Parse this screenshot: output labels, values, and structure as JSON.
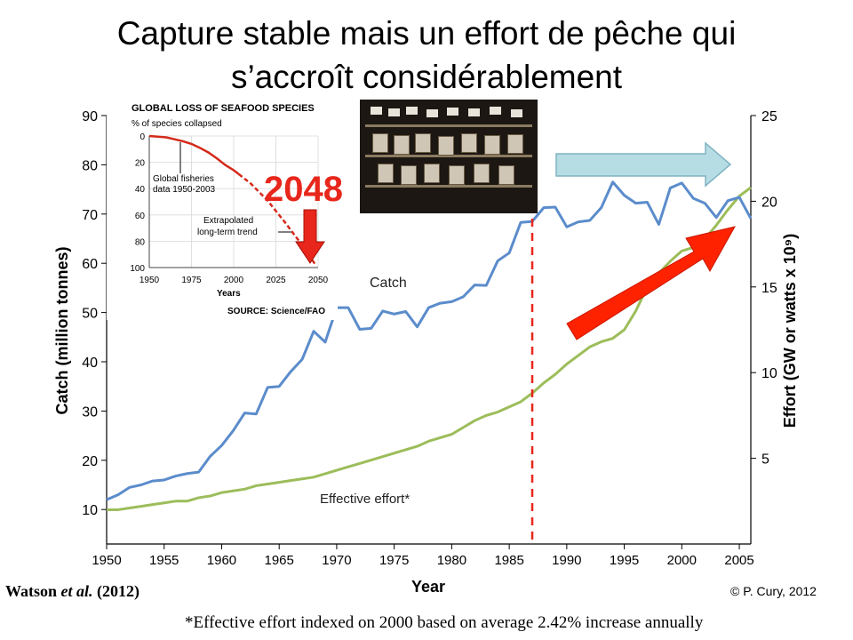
{
  "slide": {
    "title_line1": "Capture stable mais un effort de pêche qui",
    "title_line2": "s’accroît considérablement",
    "source_left_author": "Watson",
    "source_left_etal": "et al.",
    "source_left_year": "(2012)",
    "credit": "© P. Cury, 2012",
    "footnote": "*Effective effort indexed on 2000 based on average 2.42% increase annually",
    "photo_desc": "market-stall-photo"
  },
  "chart_data": [
    {
      "type": "line",
      "xlabel": "Year",
      "ylabel": "Catch (million tonnes)",
      "y2label": "Effort (GW or watts x 10⁹)",
      "xlim": [
        1950,
        2006
      ],
      "ylim": [
        3,
        90
      ],
      "y2lim": [
        0,
        25
      ],
      "x_ticks": [
        1950,
        1955,
        1960,
        1965,
        1970,
        1975,
        1980,
        1985,
        1990,
        1995,
        2000,
        2005
      ],
      "y_ticks": [
        10,
        20,
        30,
        40,
        50,
        60,
        70,
        80,
        90
      ],
      "y2_ticks": [
        5,
        10,
        15,
        20,
        25
      ],
      "grid": false,
      "colors": {
        "catch": "#5b8ccb",
        "effort": "#9cbd5a",
        "marker": "#e8261b",
        "blue_arrow": "#b7dde4",
        "red_arrow": "#ff2200"
      },
      "marker_line_x": 1987,
      "series": [
        {
          "name": "Catch",
          "axis": "left",
          "x": [
            1950,
            1951,
            1952,
            1953,
            1954,
            1955,
            1956,
            1957,
            1958,
            1959,
            1960,
            1961,
            1962,
            1963,
            1964,
            1965,
            1966,
            1967,
            1968,
            1969,
            1970,
            1971,
            1972,
            1973,
            1974,
            1975,
            1976,
            1977,
            1978,
            1979,
            1980,
            1981,
            1982,
            1983,
            1984,
            1985,
            1986,
            1987,
            1988,
            1989,
            1990,
            1991,
            1992,
            1993,
            1994,
            1995,
            1996,
            1997,
            1998,
            1999,
            2000,
            2001,
            2002,
            2003,
            2004,
            2005,
            2006
          ],
          "values": [
            12,
            13,
            14.5,
            15,
            15.8,
            16,
            16.8,
            17.3,
            17.6,
            20.8,
            23,
            26,
            29.6,
            29.4,
            34.8,
            35,
            38,
            40.5,
            46.2,
            44,
            51,
            51,
            46.6,
            46.8,
            50.3,
            49.7,
            50.2,
            47.1,
            51,
            51.9,
            52.2,
            53.2,
            55.6,
            55.5,
            60.5,
            62.1,
            68.3,
            68.5,
            71.3,
            71.4,
            67.4,
            68.4,
            68.7,
            71.3,
            76.5,
            73.8,
            72.2,
            72.4,
            67.9,
            75.3,
            76.3,
            73.2,
            72.2,
            69.3,
            72.7,
            73.4,
            69.1
          ]
        },
        {
          "name": "Effective effort*",
          "axis": "right",
          "x": [
            1950,
            1951,
            1952,
            1953,
            1954,
            1955,
            1956,
            1957,
            1958,
            1959,
            1960,
            1961,
            1962,
            1963,
            1964,
            1965,
            1966,
            1967,
            1968,
            1969,
            1970,
            1971,
            1972,
            1973,
            1974,
            1975,
            1976,
            1977,
            1978,
            1979,
            1980,
            1981,
            1982,
            1983,
            1984,
            1985,
            1986,
            1987,
            1988,
            1989,
            1990,
            1991,
            1992,
            1993,
            1994,
            1995,
            1996,
            1997,
            1998,
            1999,
            2000,
            2001,
            2002,
            2003,
            2004,
            2005,
            2006
          ],
          "values": [
            2,
            2,
            2.1,
            2.2,
            2.3,
            2.4,
            2.5,
            2.5,
            2.7,
            2.8,
            3,
            3.1,
            3.2,
            3.4,
            3.5,
            3.6,
            3.7,
            3.8,
            3.9,
            4.1,
            4.3,
            4.5,
            4.7,
            4.9,
            5.1,
            5.3,
            5.5,
            5.7,
            6,
            6.2,
            6.4,
            6.8,
            7.2,
            7.5,
            7.7,
            8,
            8.3,
            8.8,
            9.4,
            9.9,
            10.5,
            11,
            11.5,
            11.8,
            12,
            12.5,
            13.6,
            15,
            15.8,
            16.5,
            17.1,
            17.3,
            17.8,
            18.6,
            19.5,
            20.3,
            20.8
          ]
        }
      ],
      "labels": {
        "catch_label": "Catch",
        "effort_label": "Effective effort*",
        "big_year": "2048"
      }
    },
    {
      "type": "line",
      "title": "GLOBAL LOSS OF SEAFOOD SPECIES",
      "subtitle": "% of species collapsed",
      "xlabel": "Years",
      "source": "SOURCE: Science/FAO",
      "xlim": [
        1950,
        2050
      ],
      "ylim": [
        0,
        100
      ],
      "y_inverted": true,
      "x_ticks": [
        1950,
        1975,
        2000,
        2025,
        2050
      ],
      "y_ticks": [
        0,
        20,
        40,
        60,
        80,
        100
      ],
      "grid": true,
      "annotations": [
        "Global fisheries",
        "data 1950-2003",
        "Extrapolated",
        "long-term trend"
      ],
      "series": [
        {
          "name": "Global fisheries data 1950-2003",
          "style": "solid",
          "x": [
            1950,
            1955,
            1960,
            1965,
            1970,
            1975,
            1980,
            1985,
            1990,
            1995,
            2000,
            2003
          ],
          "values": [
            0,
            0.5,
            1,
            2.5,
            4,
            6,
            9,
            12.5,
            17,
            22,
            26,
            29
          ]
        },
        {
          "name": "Extrapolated long-term trend",
          "style": "dashed",
          "x": [
            2003,
            2010,
            2020,
            2030,
            2040,
            2048
          ],
          "values": [
            29,
            36,
            49,
            65,
            82,
            97
          ]
        }
      ]
    }
  ]
}
